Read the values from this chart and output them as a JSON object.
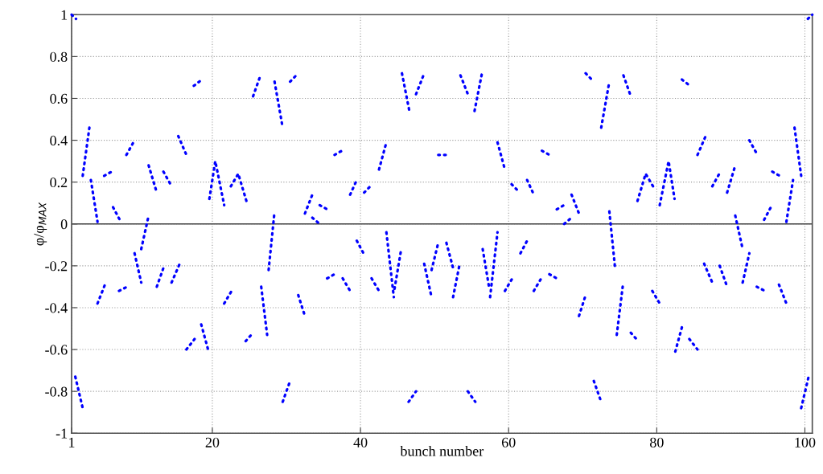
{
  "chart_data": {
    "type": "line",
    "xlabel": "bunch number",
    "ylabel": "φ/φ$_{MAX}$",
    "xlim": [
      1,
      101
    ],
    "xticks": [
      1,
      20,
      40,
      60,
      80,
      100
    ],
    "ylim": [
      -1,
      1
    ],
    "yticks": [
      -1,
      -0.8,
      -0.6,
      -0.4,
      -0.2,
      0,
      0.2,
      0.4,
      0.6,
      0.8,
      1
    ],
    "grid": true,
    "line_style": "dotted",
    "marker": "none",
    "ref_lines": [
      {
        "axis": "y",
        "value": 0,
        "color": "#404040",
        "line_style": "solid"
      }
    ],
    "series": [
      {
        "color": "#0000ff",
        "x": [
          1,
          1.6,
          null,
          2.5,
          3.4,
          null,
          3.6,
          4.5,
          null,
          5.4,
          6.4,
          null,
          6.6,
          7.5,
          null,
          8.4,
          9.5,
          null,
          11.4,
          12.5,
          null,
          13.4,
          14.5,
          null,
          15.4,
          16.5,
          null,
          17.5,
          18.6,
          null,
          19.6,
          20.4,
          21.6,
          null,
          22.5,
          23.5,
          24.6,
          null,
          25.5,
          26.5,
          null,
          28.4,
          29.5,
          null,
          30.5,
          31.6,
          null,
          32.5,
          33.5,
          null,
          33.5,
          34.5,
          null,
          34.5,
          35.5,
          null,
          36.5,
          37.5,
          null,
          38.6,
          39.5,
          null,
          40.5,
          41.6,
          null,
          42.5,
          43.5,
          null,
          45.6,
          46.6,
          null,
          47.5,
          48.5,
          null,
          50.5,
          51.6,
          null,
          1.5,
          2.5,
          null,
          4.5,
          5.5,
          null,
          7.4,
          8.5,
          null,
          9.5,
          10.4,
          null,
          10.4,
          11.4,
          null,
          12.5,
          13.5,
          null,
          14.5,
          15.6,
          null,
          16.5,
          17.6,
          null,
          18.5,
          19.5,
          null,
          21.6,
          22.6,
          null,
          24.5,
          25.5,
          null,
          26.6,
          27.4,
          null,
          27.6,
          28.4,
          null,
          29.5,
          30.5,
          null,
          31.6,
          32.5,
          null,
          35.5,
          36.5,
          null,
          37.6,
          38.6,
          null,
          39.5,
          40.4,
          null,
          41.5,
          42.5,
          null,
          43.5,
          44.5,
          null,
          44.6,
          45.5,
          null,
          46.5,
          47.5,
          null,
          48.6,
          49.6,
          null,
          49.6,
          50.5,
          null,
          51.6,
          52.5,
          null,
          52.5,
          53.4,
          null,
          54.5,
          55.5,
          null,
          56.5,
          57.4,
          null,
          57.5,
          58.5,
          null,
          59.5,
          60.5,
          null,
          61.6,
          62.5,
          null,
          63.4,
          64.4,
          null,
          65.5,
          66.5,
          null,
          69.5,
          70.4,
          null,
          71.5,
          72.5,
          null,
          73.6,
          74.4,
          null,
          74.6,
          75.4,
          null,
          76.5,
          77.5,
          null,
          79.4,
          80.4,
          null,
          82.5,
          83.5,
          null,
          84.4,
          85.5,
          null,
          86.4,
          87.5,
          null,
          88.5,
          89.5,
          null,
          90.6,
          91.6,
          null,
          91.6,
          92.5,
          null,
          93.5,
          94.6,
          null,
          96.5,
          97.5,
          null,
          99.5,
          100.5,
          null,
          53.5,
          54.5,
          null,
          55.4,
          56.4,
          null,
          58.5,
          59.5,
          null,
          60.4,
          61.5,
          null,
          62.5,
          63.4,
          null,
          64.5,
          65.5,
          null,
          66.5,
          67.5,
          null,
          67.5,
          68.5,
          null,
          68.5,
          69.5,
          null,
          70.4,
          71.5,
          null,
          72.5,
          73.6,
          null,
          75.5,
          76.5,
          null,
          77.4,
          78.5,
          79.5,
          null,
          80.4,
          81.6,
          82.4,
          null,
          83.4,
          84.5,
          null,
          85.5,
          86.6,
          null,
          87.5,
          88.6,
          null,
          89.5,
          90.6,
          null,
          92.5,
          93.6,
          null,
          94.5,
          95.4,
          null,
          95.6,
          96.6,
          null,
          97.5,
          98.4,
          null,
          98.6,
          99.5,
          null,
          100.4,
          101
        ],
        "values": [
          1,
          0.98,
          null,
          0.23,
          0.46,
          null,
          0.21,
          0.01,
          null,
          0.23,
          0.25,
          null,
          0.08,
          0.02,
          null,
          0.33,
          0.4,
          null,
          0.28,
          0.15,
          null,
          0.25,
          0.18,
          null,
          0.42,
          0.33,
          null,
          0.66,
          0.69,
          null,
          0.12,
          0.3,
          0.09,
          null,
          0.18,
          0.24,
          0.11,
          null,
          0.61,
          0.71,
          null,
          0.68,
          0.46,
          null,
          0.68,
          0.72,
          null,
          0.05,
          0.14,
          null,
          0.03,
          0.0,
          null,
          0.09,
          0.07,
          null,
          0.33,
          0.35,
          null,
          0.14,
          0.21,
          null,
          0.15,
          0.19,
          null,
          0.26,
          0.39,
          null,
          0.72,
          0.54,
          null,
          0.62,
          0.71,
          null,
          0.33,
          0.33,
          null,
          -0.73,
          -0.88,
          null,
          -0.38,
          -0.29,
          null,
          -0.32,
          -0.3,
          null,
          -0.14,
          -0.28,
          null,
          -0.12,
          0.04,
          null,
          -0.3,
          -0.2,
          null,
          -0.28,
          -0.19,
          null,
          -0.6,
          -0.55,
          null,
          -0.48,
          -0.61,
          null,
          -0.38,
          -0.32,
          null,
          -0.56,
          -0.52,
          null,
          -0.3,
          -0.53,
          null,
          -0.22,
          0.06,
          null,
          -0.85,
          -0.75,
          null,
          -0.34,
          -0.44,
          null,
          -0.26,
          -0.24,
          null,
          -0.26,
          -0.32,
          null,
          -0.08,
          -0.14,
          null,
          -0.26,
          -0.32,
          null,
          -0.04,
          -0.35,
          null,
          -0.31,
          -0.12,
          null,
          -0.85,
          -0.8,
          null,
          -0.19,
          -0.35,
          null,
          -0.22,
          -0.09,
          null,
          -0.09,
          -0.21,
          null,
          -0.35,
          -0.19,
          null,
          -0.8,
          -0.85,
          null,
          -0.12,
          -0.31,
          null,
          -0.35,
          -0.04,
          null,
          -0.32,
          -0.26,
          null,
          -0.14,
          -0.08,
          null,
          -0.32,
          -0.26,
          null,
          -0.24,
          -0.26,
          null,
          -0.44,
          -0.34,
          null,
          -0.75,
          -0.85,
          null,
          0.06,
          -0.22,
          null,
          -0.53,
          -0.3,
          null,
          -0.52,
          -0.56,
          null,
          -0.32,
          -0.38,
          null,
          -0.61,
          -0.48,
          null,
          -0.55,
          -0.6,
          null,
          -0.19,
          -0.28,
          null,
          -0.2,
          -0.3,
          null,
          0.04,
          -0.12,
          null,
          -0.28,
          -0.14,
          null,
          -0.3,
          -0.32,
          null,
          -0.29,
          -0.38,
          null,
          -0.88,
          -0.73,
          null,
          0.71,
          0.62,
          null,
          0.54,
          0.72,
          null,
          0.39,
          0.26,
          null,
          0.19,
          0.15,
          null,
          0.21,
          0.14,
          null,
          0.35,
          0.33,
          null,
          0.07,
          0.09,
          null,
          0.0,
          0.03,
          null,
          0.14,
          0.05,
          null,
          0.72,
          0.68,
          null,
          0.46,
          0.68,
          null,
          0.71,
          0.61,
          null,
          0.11,
          0.24,
          0.18,
          null,
          0.09,
          0.3,
          0.12,
          null,
          0.69,
          0.66,
          null,
          0.33,
          0.42,
          null,
          0.18,
          0.25,
          null,
          0.15,
          0.28,
          null,
          0.4,
          0.33,
          null,
          0.02,
          0.08,
          null,
          0.25,
          0.23,
          null,
          0.01,
          0.21,
          null,
          0.46,
          0.23,
          null,
          0.98,
          1
        ]
      }
    ]
  }
}
